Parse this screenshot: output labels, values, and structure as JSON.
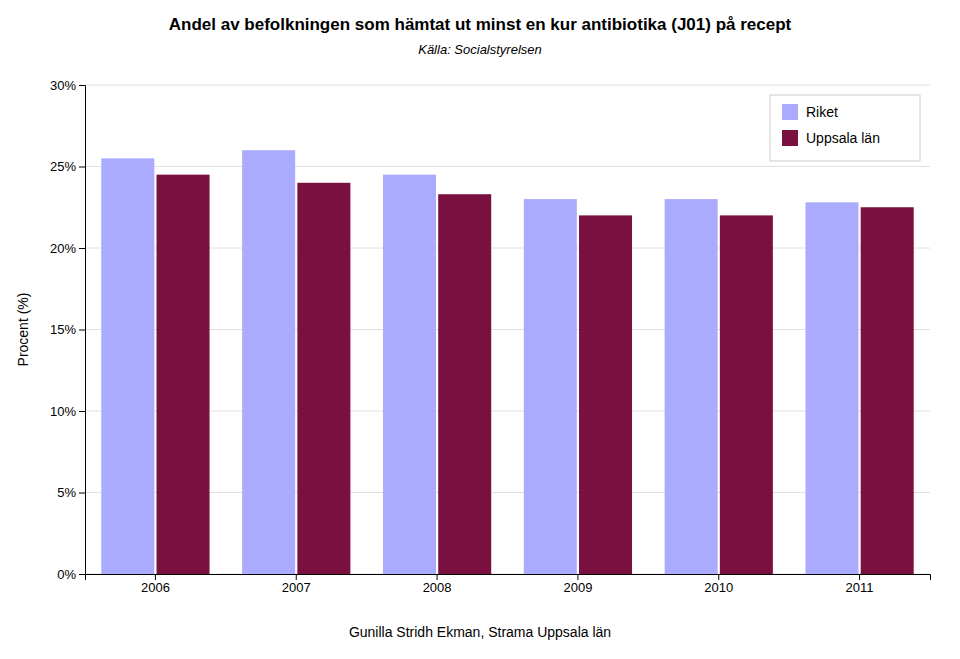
{
  "chart_data": {
    "type": "bar",
    "title": "Andel av befolkningen som hämtat ut minst en kur antibiotika (J01) på recept",
    "subtitle": "Källa: Socialstyrelsen",
    "y_label": "Procent (%)",
    "annotations": [
      "Gunilla Stridh Ekman, Strama Uppsala län"
    ],
    "categories": [
      "2006",
      "2007",
      "2008",
      "2009",
      "2010",
      "2011"
    ],
    "series": [
      {
        "name": "Riket",
        "color": "#aaaaff",
        "values": [
          0.255,
          0.26,
          0.245,
          0.23,
          0.23,
          0.228
        ]
      },
      {
        "name": "Uppsala län",
        "color": "#7a1040",
        "values": [
          0.245,
          0.24,
          0.233,
          0.22,
          0.22,
          0.225
        ]
      }
    ],
    "ylim": [
      0,
      0.3
    ],
    "yticks": [
      {
        "value": 0,
        "label": "0%"
      },
      {
        "value": 0.05,
        "label": "5%"
      },
      {
        "value": 0.1,
        "label": "10%"
      },
      {
        "value": 0.15,
        "label": "15%"
      },
      {
        "value": 0.2,
        "label": "20%"
      },
      {
        "value": 0.25,
        "label": "25%"
      },
      {
        "value": 0.3,
        "label": "30%"
      }
    ],
    "grid": true,
    "legend": "upper right"
  }
}
